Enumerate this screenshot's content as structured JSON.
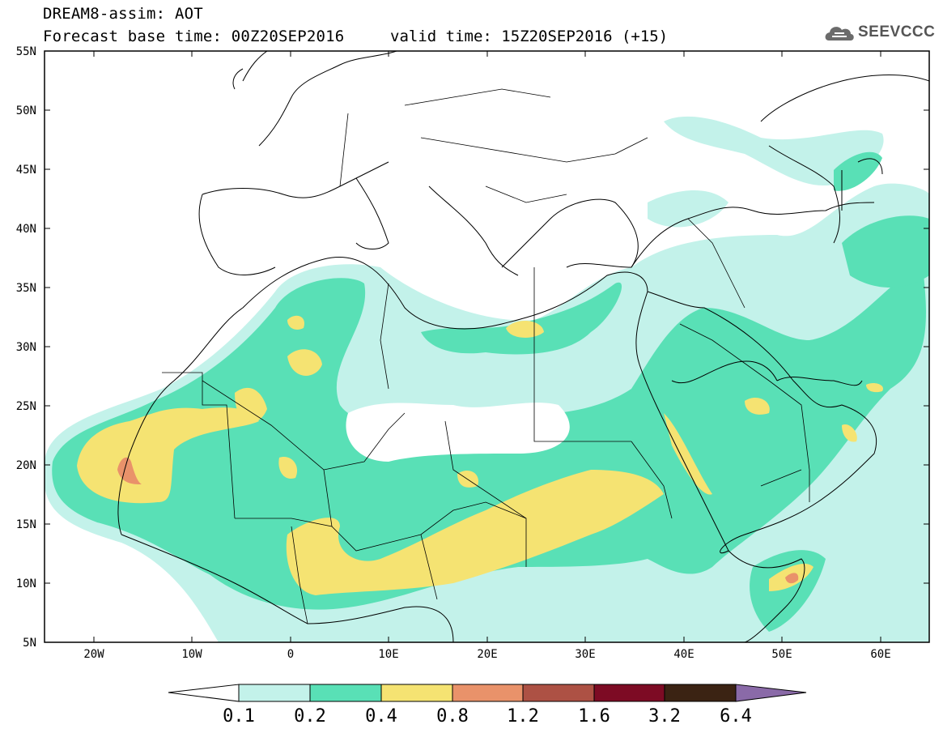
{
  "header": {
    "title_line1": "DREAM8-assim: AOT",
    "base_time": "Forecast base time: 00Z20SEP2016",
    "valid_time": "valid time: 15Z20SEP2016 (+15)"
  },
  "logo": {
    "text": "SEEVCCC",
    "icon": "cloud-logo-icon"
  },
  "map": {
    "lat_labels": [
      "55N",
      "50N",
      "45N",
      "40N",
      "35N",
      "30N",
      "25N",
      "20N",
      "15N",
      "10N",
      "5N"
    ],
    "lon_labels": [
      "20W",
      "10W",
      "0",
      "10E",
      "20E",
      "30E",
      "40E",
      "50E",
      "60E"
    ]
  },
  "colorbar": {
    "labels": [
      "0.1",
      "0.2",
      "0.4",
      "0.8",
      "1.2",
      "1.6",
      "3.2",
      "6.4"
    ],
    "colors": [
      "#c3f2ea",
      "#59e0b6",
      "#f5e372",
      "#e9926a",
      "#ad5144",
      "#7d0b24",
      "#3b2313",
      "#8a6aa8"
    ]
  }
}
